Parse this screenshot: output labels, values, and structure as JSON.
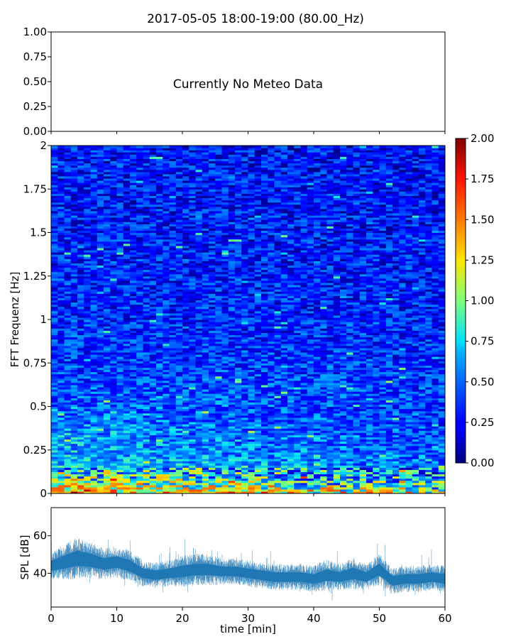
{
  "title": "2017-05-05 18:00-19:00 (80.00_Hz)",
  "chart_data": [
    {
      "type": "table",
      "panel": "meteo",
      "message": "Currently No Meteo Data",
      "ylim": [
        0,
        1
      ],
      "yticks": [
        "0.00",
        "0.25",
        "0.50",
        "0.75",
        "1.00"
      ]
    },
    {
      "type": "heatmap",
      "panel": "spectrogram",
      "ylabel": "FFT Frequenz [Hz]",
      "xlim": [
        0,
        60
      ],
      "ylim": [
        0,
        2
      ],
      "yticks": [
        "0",
        "0.25",
        "0.5",
        "0.75",
        "1",
        "1.25",
        "1.5",
        "1.75",
        "2"
      ],
      "colormap": "jet",
      "colorbar": {
        "range": [
          0,
          2
        ],
        "ticks": [
          "0.00",
          "0.25",
          "0.50",
          "0.75",
          "1.00",
          "1.25",
          "1.50",
          "1.75",
          "2.00"
        ]
      },
      "profile": {
        "description_freq": [
          0.0,
          0.05,
          0.1,
          0.2,
          0.3,
          0.5,
          0.75,
          1.0,
          1.5,
          2.0
        ],
        "level": [
          1.35,
          0.95,
          0.75,
          0.6,
          0.55,
          0.45,
          0.38,
          0.33,
          0.3,
          0.28
        ]
      }
    },
    {
      "type": "line",
      "panel": "spl",
      "xlabel": "time [min]",
      "ylabel": "SPL [dB]",
      "xlim": [
        0,
        60
      ],
      "ylim": [
        22,
        75
      ],
      "xticks": [
        "0",
        "10",
        "20",
        "30",
        "40",
        "50",
        "60"
      ],
      "yticks": [
        "40",
        "60"
      ],
      "color": "#1f77b4",
      "series": [
        {
          "x": [
            0,
            2,
            4,
            6,
            8,
            10,
            12,
            14,
            16,
            18,
            20,
            22,
            24,
            26,
            28,
            30,
            32,
            34,
            36,
            38,
            40,
            42,
            44,
            46,
            48,
            50,
            52,
            54,
            56,
            58,
            60
          ],
          "values": [
            44,
            46,
            48,
            47,
            45,
            46,
            44,
            40,
            39,
            40,
            41,
            42,
            42,
            41,
            41,
            40,
            39,
            38,
            38,
            38,
            37,
            39,
            38,
            40,
            38,
            42,
            36,
            37,
            37,
            38,
            37
          ],
          "spread": [
            5,
            7,
            8,
            7,
            6,
            6,
            6,
            5,
            5,
            5,
            6,
            6,
            6,
            5,
            5,
            5,
            5,
            5,
            5,
            5,
            5,
            6,
            5,
            6,
            5,
            6,
            5,
            5,
            5,
            5,
            5
          ]
        }
      ]
    }
  ]
}
